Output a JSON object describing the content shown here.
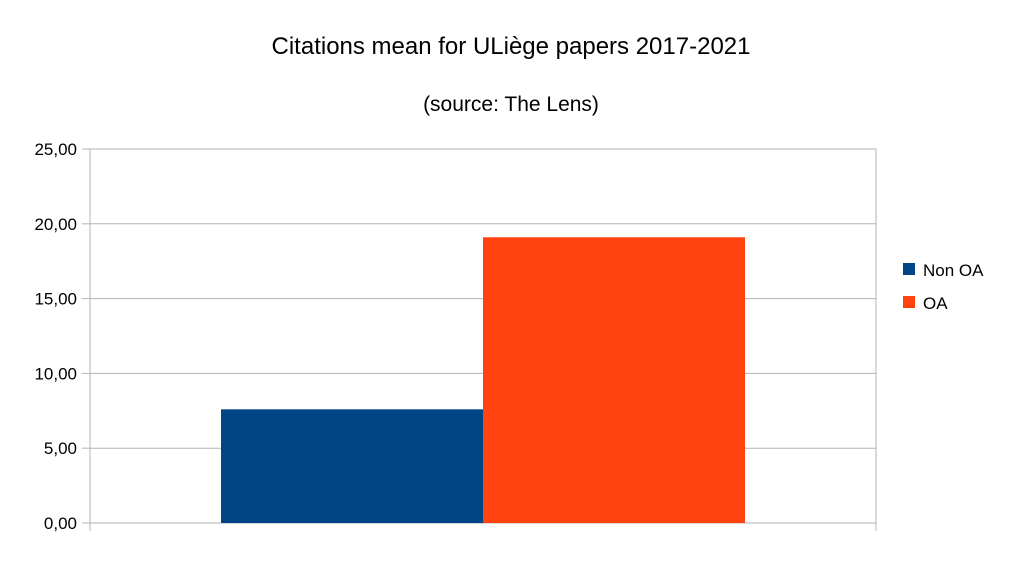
{
  "chart_data": {
    "type": "bar",
    "title": "Citations mean for ULiège papers 2017-2021",
    "subtitle": "(source: The Lens)",
    "xlabel": "",
    "ylabel": "",
    "categories": [
      ""
    ],
    "series": [
      {
        "name": "Non OA",
        "values": [
          7.6
        ],
        "color": "#004586"
      },
      {
        "name": "OA",
        "values": [
          19.1
        ],
        "color": "#ff420e"
      }
    ],
    "ylim": [
      0,
      25
    ],
    "y_ticks": [
      0,
      5,
      10,
      15,
      20,
      25
    ],
    "y_tick_labels": [
      "0,00",
      "5,00",
      "10,00",
      "15,00",
      "20,00",
      "25,00"
    ],
    "grid": true,
    "grid_color": "#b3b3b3",
    "legend_position": "right"
  }
}
